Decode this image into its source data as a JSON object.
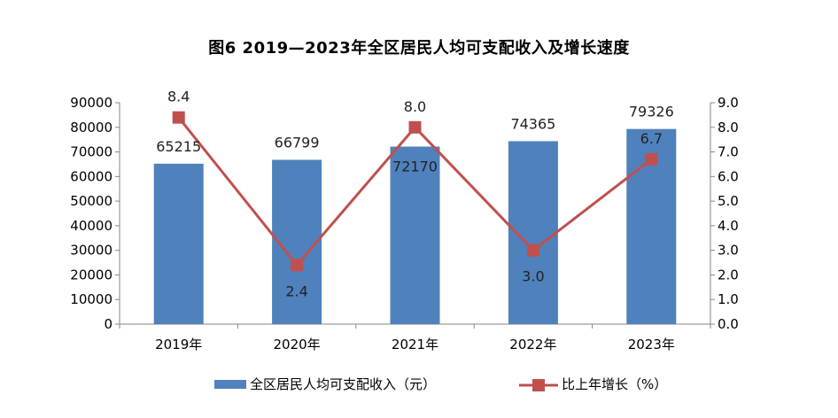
{
  "chart_data": {
    "type": "bar+line",
    "title": "图6   2019—2023年全区居民人均可支配收入及增长速度",
    "categories": [
      "2019年",
      "2020年",
      "2021年",
      "2022年",
      "2023年"
    ],
    "series": [
      {
        "name": "全区居民人均可支配收入（元）",
        "type": "bar",
        "axis": "left",
        "values": [
          65215,
          66799,
          72170,
          74365,
          79326
        ],
        "labels": [
          "65215",
          "66799",
          "72170",
          "74365",
          "79326"
        ],
        "color": "#4f81bd"
      },
      {
        "name": "比上年增长（%）",
        "type": "line",
        "axis": "right",
        "values": [
          8.4,
          2.4,
          8.0,
          3.0,
          6.7
        ],
        "labels": [
          "8.4",
          "2.4",
          "8.0",
          "3.0",
          "6.7"
        ],
        "color": "#c0504d"
      }
    ],
    "y_left": {
      "min": 0,
      "max": 90000,
      "step": 10000,
      "tick_labels": [
        "0",
        "10000",
        "20000",
        "30000",
        "40000",
        "50000",
        "60000",
        "70000",
        "80000",
        "90000"
      ]
    },
    "y_right": {
      "min": 0,
      "max": 9,
      "step": 1,
      "tick_labels": [
        "0.0",
        "1.0",
        "2.0",
        "3.0",
        "4.0",
        "5.0",
        "6.0",
        "7.0",
        "8.0",
        "9.0"
      ]
    },
    "grid": false,
    "legend": "bottom"
  }
}
